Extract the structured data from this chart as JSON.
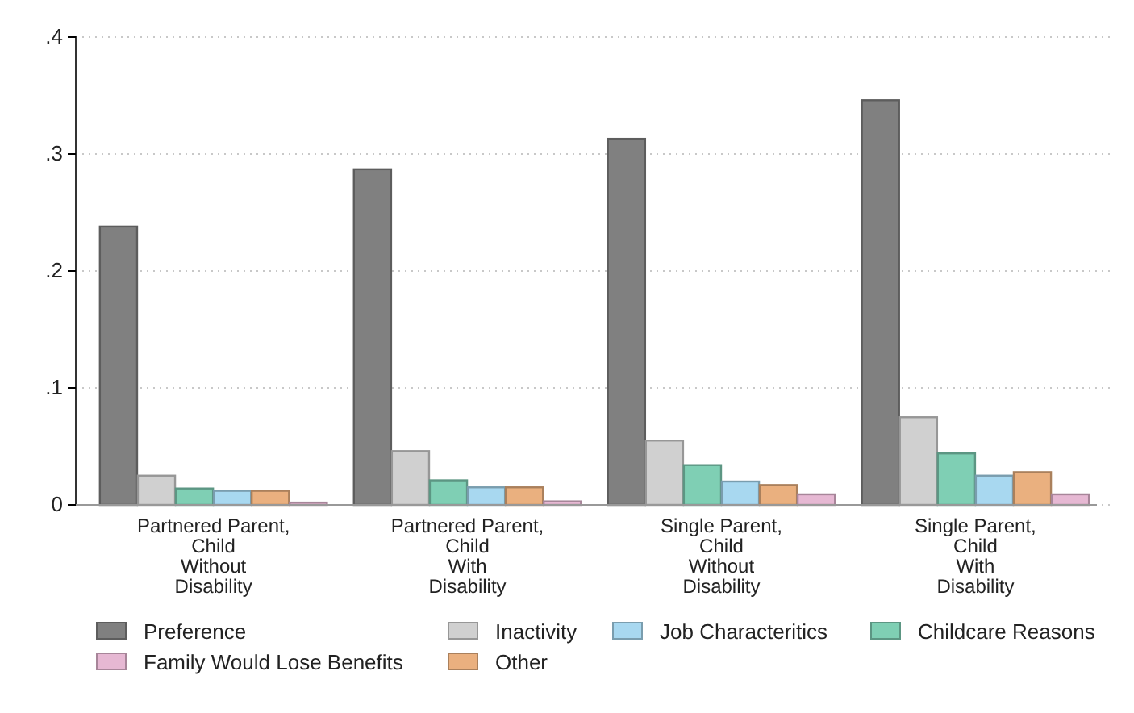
{
  "chart_data": {
    "type": "bar",
    "categories": [
      "Partnered Parent,\nChild\nWithout\nDisability",
      "Partnered Parent,\nChild\nWith\nDisability",
      "Single Parent,\nChild\nWithout\nDisability",
      "Single Parent,\nChild\nWith\nDisability"
    ],
    "series": [
      {
        "name": "Preference",
        "color": "#808080",
        "values": [
          0.238,
          0.287,
          0.313,
          0.346
        ]
      },
      {
        "name": "Inactivity",
        "color": "#d0d0d0",
        "values": [
          0.025,
          0.046,
          0.055,
          0.075
        ]
      },
      {
        "name": "Childcare Reasons",
        "color": "#7fcfb4",
        "values": [
          0.014,
          0.021,
          0.034,
          0.044
        ]
      },
      {
        "name": "Job Characteritics",
        "color": "#a8d8f0",
        "values": [
          0.012,
          0.015,
          0.02,
          0.025
        ]
      },
      {
        "name": "Other",
        "color": "#eab07f",
        "values": [
          0.012,
          0.015,
          0.017,
          0.028
        ]
      },
      {
        "name": "Family Would Lose Benefits",
        "color": "#e6b8d3",
        "values": [
          0.002,
          0.003,
          0.009,
          0.009
        ]
      }
    ],
    "ylim": [
      0,
      0.4
    ],
    "yticks": [
      {
        "value": 0,
        "label": "0"
      },
      {
        "value": 0.1,
        "label": ".1"
      },
      {
        "value": 0.2,
        "label": ".2"
      },
      {
        "value": 0.3,
        "label": ".3"
      },
      {
        "value": 0.4,
        "label": ".4"
      }
    ],
    "grid": "y",
    "legend": "bottom"
  }
}
